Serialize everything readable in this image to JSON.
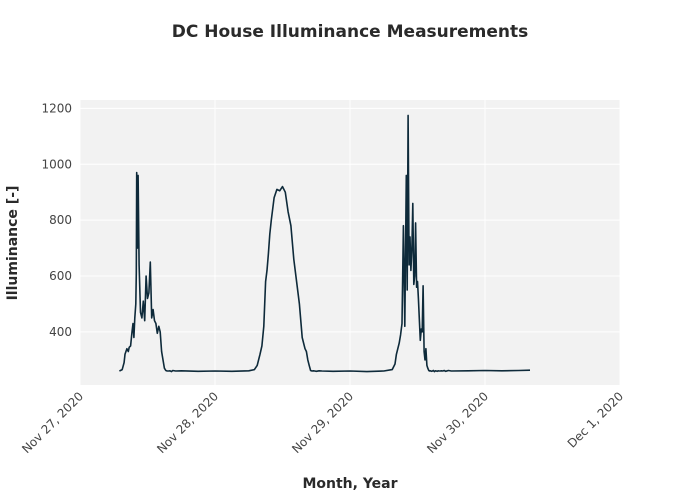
{
  "chart_data": {
    "type": "line",
    "title": "DC House Illuminance Measurements",
    "xlabel": "Month, Year",
    "ylabel": "Illuminance [-]",
    "xlim": [
      "2020-11-27T00:00",
      "2020-12-01T00:00"
    ],
    "ylim": [
      210,
      1230
    ],
    "x_ticks": [
      "Nov 27, 2020",
      "Nov 28, 2020",
      "Nov 29, 2020",
      "Nov 30, 2020",
      "Dec 1, 2020"
    ],
    "y_ticks": [
      400,
      600,
      800,
      1000,
      1200
    ],
    "grid": true,
    "legend": "none",
    "colors": {
      "line": "#0e2a3a",
      "plot_bg": "#f2f2f2",
      "grid": "#ffffff"
    },
    "series": [
      {
        "x": [
          "2020-11-27T07:00",
          "2020-11-27T07:30",
          "2020-11-27T07:50",
          "2020-11-27T08:00",
          "2020-11-27T08:20",
          "2020-11-27T08:35",
          "2020-11-27T08:45",
          "2020-11-27T09:00",
          "2020-11-27T09:15",
          "2020-11-27T09:25",
          "2020-11-27T09:35",
          "2020-11-27T09:45",
          "2020-11-27T09:55",
          "2020-11-27T10:00",
          "2020-11-27T10:05",
          "2020-11-27T10:12",
          "2020-11-27T10:20",
          "2020-11-27T10:30",
          "2020-11-27T10:45",
          "2020-11-27T11:00",
          "2020-11-27T11:15",
          "2020-11-27T11:30",
          "2020-11-27T11:45",
          "2020-11-27T12:00",
          "2020-11-27T12:15",
          "2020-11-27T12:30",
          "2020-11-27T12:45",
          "2020-11-27T13:00",
          "2020-11-27T13:15",
          "2020-11-27T13:30",
          "2020-11-27T13:45",
          "2020-11-27T14:00",
          "2020-11-27T14:15",
          "2020-11-27T14:30",
          "2020-11-27T14:45",
          "2020-11-27T15:00",
          "2020-11-27T15:15",
          "2020-11-27T15:30",
          "2020-11-27T15:45",
          "2020-11-27T16:00",
          "2020-11-27T16:15",
          "2020-11-27T16:30",
          "2020-11-27T17:00",
          "2020-11-27T18:00",
          "2020-11-27T21:00",
          "2020-11-28T00:00",
          "2020-11-28T03:00",
          "2020-11-28T06:00",
          "2020-11-28T07:00",
          "2020-11-28T07:30",
          "2020-11-28T08:00",
          "2020-11-28T08:20",
          "2020-11-28T08:40",
          "2020-11-28T09:00",
          "2020-11-28T09:15",
          "2020-11-28T09:30",
          "2020-11-28T09:45",
          "2020-11-28T10:00",
          "2020-11-28T10:30",
          "2020-11-28T11:00",
          "2020-11-28T11:30",
          "2020-11-28T12:00",
          "2020-11-28T12:30",
          "2020-11-28T13:00",
          "2020-11-28T13:30",
          "2020-11-28T14:00",
          "2020-11-28T14:30",
          "2020-11-28T15:00",
          "2020-11-28T15:30",
          "2020-11-28T16:00",
          "2020-11-28T16:15",
          "2020-11-28T16:30",
          "2020-11-28T16:45",
          "2020-11-28T17:00",
          "2020-11-28T17:15",
          "2020-11-28T17:30",
          "2020-11-28T17:45",
          "2020-11-28T18:00",
          "2020-11-28T18:30",
          "2020-11-28T19:00",
          "2020-11-28T21:00",
          "2020-11-29T00:00",
          "2020-11-29T03:00",
          "2020-11-29T06:00",
          "2020-11-29T07:30",
          "2020-11-29T08:00",
          "2020-11-29T08:15",
          "2020-11-29T08:30",
          "2020-11-29T08:45",
          "2020-11-29T09:00",
          "2020-11-29T09:15",
          "2020-11-29T09:30",
          "2020-11-29T09:45",
          "2020-11-29T10:00",
          "2020-11-29T10:10",
          "2020-11-29T10:20",
          "2020-11-29T10:30",
          "2020-11-29T10:40",
          "2020-11-29T10:50",
          "2020-11-29T11:00",
          "2020-11-29T11:10",
          "2020-11-29T11:20",
          "2020-11-29T11:30",
          "2020-11-29T11:40",
          "2020-11-29T11:50",
          "2020-11-29T12:00",
          "2020-11-29T12:10",
          "2020-11-29T12:20",
          "2020-11-29T12:30",
          "2020-11-29T12:40",
          "2020-11-29T12:50",
          "2020-11-29T13:00",
          "2020-11-29T13:10",
          "2020-11-29T13:20",
          "2020-11-29T13:30",
          "2020-11-29T13:40",
          "2020-11-29T13:50",
          "2020-11-29T14:00",
          "2020-11-29T14:10",
          "2020-11-29T14:20",
          "2020-11-29T14:30",
          "2020-11-29T14:40",
          "2020-11-29T14:50",
          "2020-11-29T15:00",
          "2020-11-29T15:10",
          "2020-11-29T15:20",
          "2020-11-29T15:30",
          "2020-11-29T15:40",
          "2020-11-29T15:50",
          "2020-11-29T16:00",
          "2020-11-29T16:15",
          "2020-11-29T16:30",
          "2020-11-29T16:45",
          "2020-11-29T17:00",
          "2020-11-29T17:30",
          "2020-11-29T18:00",
          "2020-11-29T21:00",
          "2020-11-30T00:00",
          "2020-11-30T03:00",
          "2020-11-30T06:00",
          "2020-11-30T08:00"
        ],
        "y": [
          260,
          265,
          290,
          320,
          340,
          330,
          345,
          350,
          400,
          430,
          380,
          450,
          500,
          610,
          970,
          700,
          960,
          640,
          470,
          450,
          510,
          440,
          600,
          520,
          540,
          650,
          450,
          480,
          440,
          430,
          395,
          420,
          400,
          330,
          300,
          270,
          262,
          260,
          260,
          261,
          258,
          262,
          260,
          261,
          259,
          260,
          259,
          261,
          265,
          280,
          320,
          350,
          420,
          580,
          620,
          680,
          750,
          800,
          880,
          910,
          905,
          920,
          900,
          830,
          780,
          660,
          580,
          500,
          380,
          340,
          330,
          300,
          280,
          262,
          260,
          261,
          260,
          259,
          261,
          260,
          259,
          260,
          258,
          260,
          265,
          285,
          320,
          340,
          360,
          390,
          430,
          780,
          420,
          960,
          550,
          1175,
          640,
          740,
          620,
          700,
          860,
          570,
          600,
          790,
          560,
          580,
          520,
          440,
          370,
          410,
          400,
          565,
          330,
          300,
          340,
          280,
          270,
          262,
          260,
          261,
          259,
          260,
          262,
          258,
          261,
          260,
          259,
          261,
          260,
          260,
          261,
          260,
          262,
          259,
          262,
          260,
          261,
          262,
          261,
          262,
          263
        ]
      }
    ]
  }
}
